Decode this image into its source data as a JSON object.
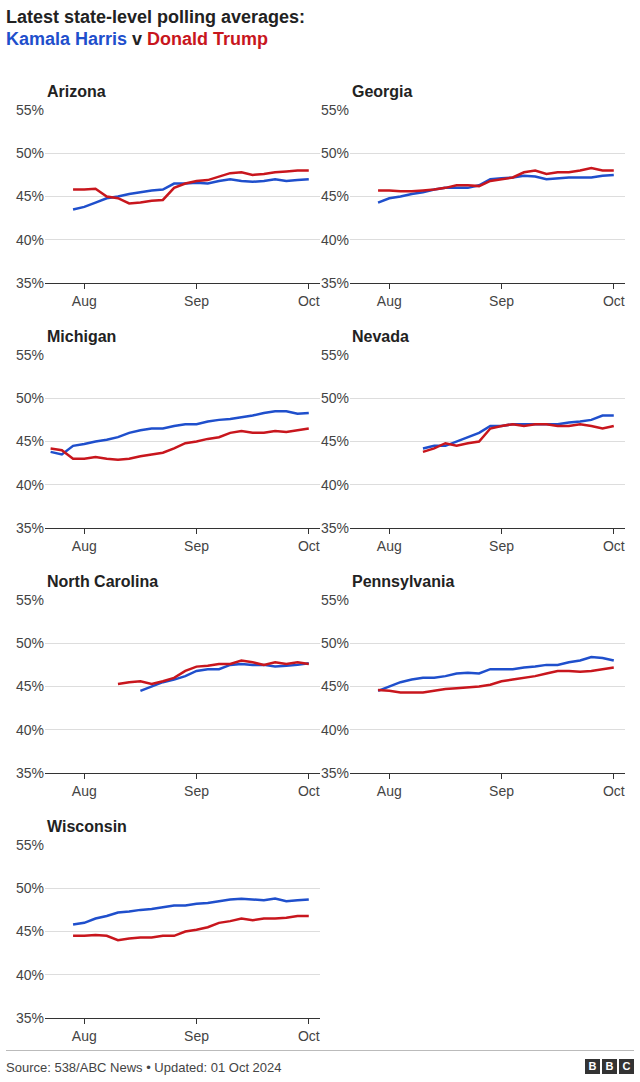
{
  "title": "Latest state-level polling averages:",
  "subtitle": "Kamala Harris v Donald Trump",
  "source": "Source: 538/ABC News • Updated: 01 Oct 2024",
  "logo": "BBC",
  "chart_data": [
    {
      "type": "line",
      "title": "Arizona",
      "categories": [
        null,
        null,
        null,
        "Aug",
        null,
        null,
        null,
        null,
        null,
        null,
        null,
        null,
        null,
        "Sep",
        null,
        null,
        null,
        null,
        null,
        null,
        null,
        null,
        null,
        "Oct"
      ],
      "series": [
        {
          "name": "Kamala Harris",
          "color": "#1f4fcc",
          "values": [
            null,
            null,
            43.5,
            43.8,
            44.3,
            44.8,
            45.0,
            45.3,
            45.5,
            45.7,
            45.8,
            46.5,
            46.5,
            46.6,
            46.5,
            46.8,
            47.0,
            46.8,
            46.7,
            46.8,
            47.0,
            46.8,
            46.9,
            47.0
          ]
        },
        {
          "name": "Donald Trump",
          "color": "#c8161d",
          "values": [
            null,
            null,
            45.8,
            45.8,
            45.9,
            45.0,
            44.8,
            44.2,
            44.3,
            44.5,
            44.6,
            46.0,
            46.5,
            46.8,
            46.9,
            47.3,
            47.7,
            47.8,
            47.5,
            47.6,
            47.8,
            47.9,
            48.0,
            48.0
          ]
        }
      ],
      "ylim": [
        35,
        55
      ],
      "yticks": [
        {
          "value": 35,
          "label": "35%"
        },
        {
          "value": 40,
          "label": "40%"
        },
        {
          "value": 45,
          "label": "45%"
        },
        {
          "value": 50,
          "label": "50%"
        },
        {
          "value": 55,
          "label": "55%"
        }
      ],
      "grid": true
    },
    {
      "type": "line",
      "title": "Georgia",
      "categories": [
        null,
        null,
        null,
        "Aug",
        null,
        null,
        null,
        null,
        null,
        null,
        null,
        null,
        null,
        "Sep",
        null,
        null,
        null,
        null,
        null,
        null,
        null,
        null,
        null,
        "Oct"
      ],
      "series": [
        {
          "name": "Kamala Harris",
          "color": "#1f4fcc",
          "values": [
            null,
            null,
            44.3,
            44.8,
            45.0,
            45.3,
            45.5,
            45.8,
            46.0,
            46.0,
            46.0,
            46.3,
            47.0,
            47.1,
            47.2,
            47.4,
            47.3,
            47.0,
            47.1,
            47.2,
            47.2,
            47.2,
            47.4,
            47.5
          ]
        },
        {
          "name": "Donald Trump",
          "color": "#c8161d",
          "values": [
            null,
            null,
            45.7,
            45.7,
            45.6,
            45.6,
            45.7,
            45.8,
            46.0,
            46.3,
            46.3,
            46.2,
            46.8,
            47.0,
            47.2,
            47.8,
            48.0,
            47.6,
            47.8,
            47.8,
            48.0,
            48.3,
            48.0,
            48.0
          ]
        }
      ],
      "ylim": [
        35,
        55
      ],
      "yticks": [
        {
          "value": 35,
          "label": "35%"
        },
        {
          "value": 40,
          "label": "40%"
        },
        {
          "value": 45,
          "label": "45%"
        },
        {
          "value": 50,
          "label": "50%"
        },
        {
          "value": 55,
          "label": "55%"
        }
      ],
      "grid": true
    },
    {
      "type": "line",
      "title": "Michigan",
      "categories": [
        null,
        null,
        null,
        "Aug",
        null,
        null,
        null,
        null,
        null,
        null,
        null,
        null,
        null,
        "Sep",
        null,
        null,
        null,
        null,
        null,
        null,
        null,
        null,
        null,
        "Oct"
      ],
      "series": [
        {
          "name": "Kamala Harris",
          "color": "#1f4fcc",
          "values": [
            43.8,
            43.5,
            44.5,
            44.7,
            45.0,
            45.2,
            45.5,
            46.0,
            46.3,
            46.5,
            46.5,
            46.8,
            47.0,
            47.0,
            47.3,
            47.5,
            47.6,
            47.8,
            48.0,
            48.3,
            48.5,
            48.5,
            48.2,
            48.3
          ]
        },
        {
          "name": "Donald Trump",
          "color": "#c8161d",
          "values": [
            44.2,
            44.0,
            43.0,
            43.0,
            43.2,
            43.0,
            42.9,
            43.0,
            43.3,
            43.5,
            43.7,
            44.2,
            44.8,
            45.0,
            45.3,
            45.5,
            46.0,
            46.2,
            46.0,
            46.0,
            46.2,
            46.1,
            46.3,
            46.5
          ]
        }
      ],
      "ylim": [
        35,
        55
      ],
      "yticks": [
        {
          "value": 35,
          "label": "35%"
        },
        {
          "value": 40,
          "label": "40%"
        },
        {
          "value": 45,
          "label": "45%"
        },
        {
          "value": 50,
          "label": "50%"
        },
        {
          "value": 55,
          "label": "55%"
        }
      ],
      "grid": true
    },
    {
      "type": "line",
      "title": "Nevada",
      "categories": [
        null,
        null,
        null,
        "Aug",
        null,
        null,
        null,
        null,
        null,
        null,
        null,
        null,
        null,
        "Sep",
        null,
        null,
        null,
        null,
        null,
        null,
        null,
        null,
        null,
        "Oct"
      ],
      "series": [
        {
          "name": "Kamala Harris",
          "color": "#1f4fcc",
          "values": [
            null,
            null,
            null,
            null,
            null,
            null,
            44.2,
            44.5,
            44.5,
            45.0,
            45.5,
            46.0,
            46.8,
            46.8,
            47.0,
            47.0,
            47.0,
            47.0,
            47.0,
            47.2,
            47.3,
            47.5,
            48.0,
            48.0
          ]
        },
        {
          "name": "Donald Trump",
          "color": "#c8161d",
          "values": [
            null,
            null,
            null,
            null,
            null,
            null,
            43.8,
            44.2,
            44.8,
            44.5,
            44.8,
            45.0,
            46.5,
            46.8,
            47.0,
            46.8,
            47.0,
            47.0,
            46.8,
            46.8,
            47.0,
            46.8,
            46.5,
            46.8
          ]
        }
      ],
      "ylim": [
        35,
        55
      ],
      "yticks": [
        {
          "value": 35,
          "label": "35%"
        },
        {
          "value": 40,
          "label": "40%"
        },
        {
          "value": 45,
          "label": "45%"
        },
        {
          "value": 50,
          "label": "50%"
        },
        {
          "value": 55,
          "label": "55%"
        }
      ],
      "grid": true
    },
    {
      "type": "line",
      "title": "North Carolina",
      "categories": [
        null,
        null,
        null,
        "Aug",
        null,
        null,
        null,
        null,
        null,
        null,
        null,
        null,
        null,
        "Sep",
        null,
        null,
        null,
        null,
        null,
        null,
        null,
        null,
        null,
        "Oct"
      ],
      "series": [
        {
          "name": "Kamala Harris",
          "color": "#1f4fcc",
          "values": [
            null,
            null,
            null,
            null,
            null,
            null,
            null,
            null,
            44.5,
            45.0,
            45.5,
            45.8,
            46.2,
            46.8,
            47.0,
            47.0,
            47.5,
            47.6,
            47.5,
            47.5,
            47.3,
            47.4,
            47.5,
            47.7
          ]
        },
        {
          "name": "Donald Trump",
          "color": "#c8161d",
          "values": [
            null,
            null,
            null,
            null,
            null,
            null,
            45.3,
            45.5,
            45.6,
            45.3,
            45.6,
            46.0,
            46.8,
            47.3,
            47.4,
            47.6,
            47.6,
            48.0,
            47.8,
            47.5,
            47.8,
            47.6,
            47.8,
            47.6
          ]
        }
      ],
      "ylim": [
        35,
        55
      ],
      "yticks": [
        {
          "value": 35,
          "label": "35%"
        },
        {
          "value": 40,
          "label": "40%"
        },
        {
          "value": 45,
          "label": "45%"
        },
        {
          "value": 50,
          "label": "50%"
        },
        {
          "value": 55,
          "label": "55%"
        }
      ],
      "grid": true
    },
    {
      "type": "line",
      "title": "Pennsylvania",
      "categories": [
        null,
        null,
        null,
        "Aug",
        null,
        null,
        null,
        null,
        null,
        null,
        null,
        null,
        null,
        "Sep",
        null,
        null,
        null,
        null,
        null,
        null,
        null,
        null,
        null,
        "Oct"
      ],
      "series": [
        {
          "name": "Kamala Harris",
          "color": "#1f4fcc",
          "values": [
            null,
            null,
            44.5,
            45.0,
            45.5,
            45.8,
            46.0,
            46.0,
            46.2,
            46.5,
            46.6,
            46.5,
            47.0,
            47.0,
            47.0,
            47.2,
            47.3,
            47.5,
            47.5,
            47.8,
            48.0,
            48.4,
            48.3,
            48.0
          ]
        },
        {
          "name": "Donald Trump",
          "color": "#c8161d",
          "values": [
            null,
            null,
            44.6,
            44.5,
            44.3,
            44.3,
            44.3,
            44.5,
            44.7,
            44.8,
            44.9,
            45.0,
            45.2,
            45.6,
            45.8,
            46.0,
            46.2,
            46.5,
            46.8,
            46.8,
            46.7,
            46.8,
            47.0,
            47.2
          ]
        }
      ],
      "ylim": [
        35,
        55
      ],
      "yticks": [
        {
          "value": 35,
          "label": "35%"
        },
        {
          "value": 40,
          "label": "40%"
        },
        {
          "value": 45,
          "label": "45%"
        },
        {
          "value": 50,
          "label": "50%"
        },
        {
          "value": 55,
          "label": "55%"
        }
      ],
      "grid": true
    },
    {
      "type": "line",
      "title": "Wisconsin",
      "categories": [
        null,
        null,
        null,
        "Aug",
        null,
        null,
        null,
        null,
        null,
        null,
        null,
        null,
        null,
        "Sep",
        null,
        null,
        null,
        null,
        null,
        null,
        null,
        null,
        null,
        "Oct"
      ],
      "series": [
        {
          "name": "Kamala Harris",
          "color": "#1f4fcc",
          "values": [
            null,
            null,
            45.8,
            46.0,
            46.5,
            46.8,
            47.2,
            47.3,
            47.5,
            47.6,
            47.8,
            48.0,
            48.0,
            48.2,
            48.3,
            48.5,
            48.7,
            48.8,
            48.7,
            48.6,
            48.8,
            48.5,
            48.6,
            48.7
          ]
        },
        {
          "name": "Donald Trump",
          "color": "#c8161d",
          "values": [
            null,
            null,
            44.5,
            44.5,
            44.6,
            44.5,
            44.0,
            44.2,
            44.3,
            44.3,
            44.5,
            44.5,
            45.0,
            45.2,
            45.5,
            46.0,
            46.2,
            46.5,
            46.3,
            46.5,
            46.5,
            46.6,
            46.8,
            46.8
          ]
        }
      ],
      "ylim": [
        35,
        55
      ],
      "yticks": [
        {
          "value": 35,
          "label": "35%"
        },
        {
          "value": 40,
          "label": "40%"
        },
        {
          "value": 45,
          "label": "45%"
        },
        {
          "value": 50,
          "label": "50%"
        },
        {
          "value": 55,
          "label": "55%"
        }
      ],
      "grid": true
    }
  ]
}
